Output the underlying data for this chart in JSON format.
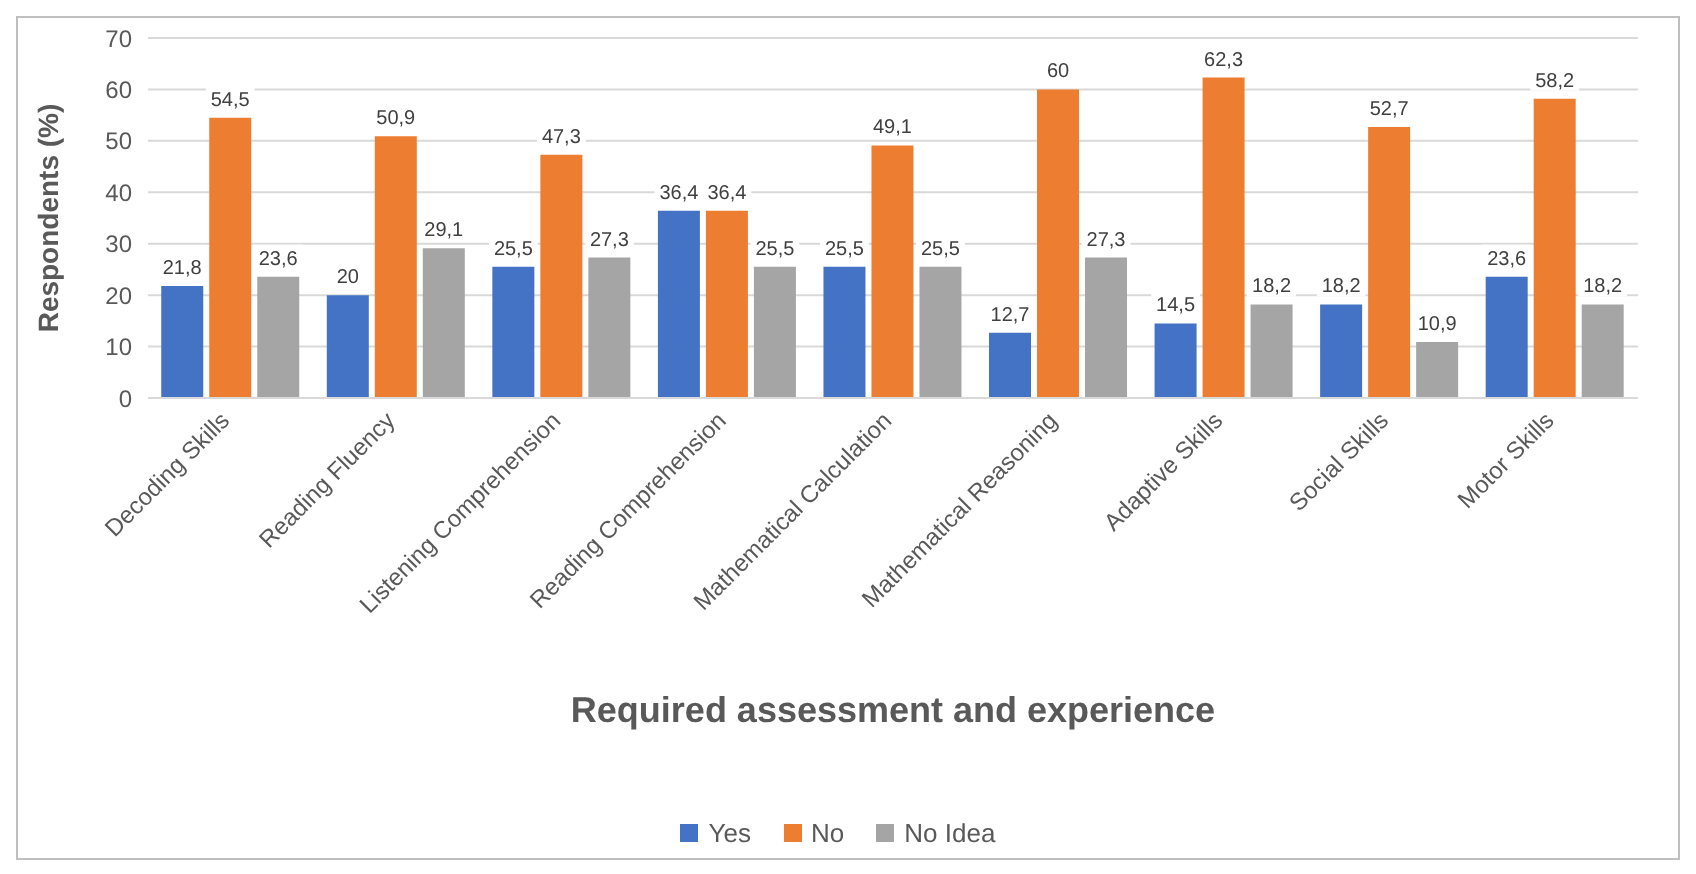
{
  "chart_data": {
    "type": "bar",
    "xlabel": "Required assessment and experience",
    "ylabel": "Respondents (%)",
    "categories": [
      "Decoding Skills",
      "Reading Fluency",
      "Listening Comprehension",
      "Reading Comprehension",
      "Mathematical Calculation",
      "Mathematical Reasoning",
      "Adaptive Skills",
      "Social Skills",
      "Motor Skills"
    ],
    "series": [
      {
        "name": "Yes",
        "color": "#4472c4",
        "values": [
          21.8,
          20,
          25.5,
          36.4,
          25.5,
          12.7,
          14.5,
          18.2,
          23.6
        ],
        "value_labels": [
          "21,8",
          "20",
          "25,5",
          "36,4",
          "25,5",
          "12,7",
          "14,5",
          "18,2",
          "23,6"
        ]
      },
      {
        "name": "No",
        "color": "#ed7d31",
        "values": [
          54.5,
          50.9,
          47.3,
          36.4,
          49.1,
          60,
          62.3,
          52.7,
          58.2
        ],
        "value_labels": [
          "54,5",
          "50,9",
          "47,3",
          "36,4",
          "49,1",
          "60",
          "62,3",
          "52,7",
          "58,2"
        ]
      },
      {
        "name": "No Idea",
        "color": "#a5a5a5",
        "values": [
          23.6,
          29.1,
          27.3,
          25.5,
          25.5,
          27.3,
          18.2,
          10.9,
          18.2
        ],
        "value_labels": [
          "23,6",
          "29,1",
          "27,3",
          "25,5",
          "25,5",
          "27,3",
          "18,2",
          "10,9",
          "18,2"
        ]
      }
    ],
    "ylim": [
      0,
      70
    ],
    "yticks": [
      0,
      10,
      20,
      30,
      40,
      50,
      60,
      70
    ],
    "grid": "y",
    "legend": "bottom"
  }
}
